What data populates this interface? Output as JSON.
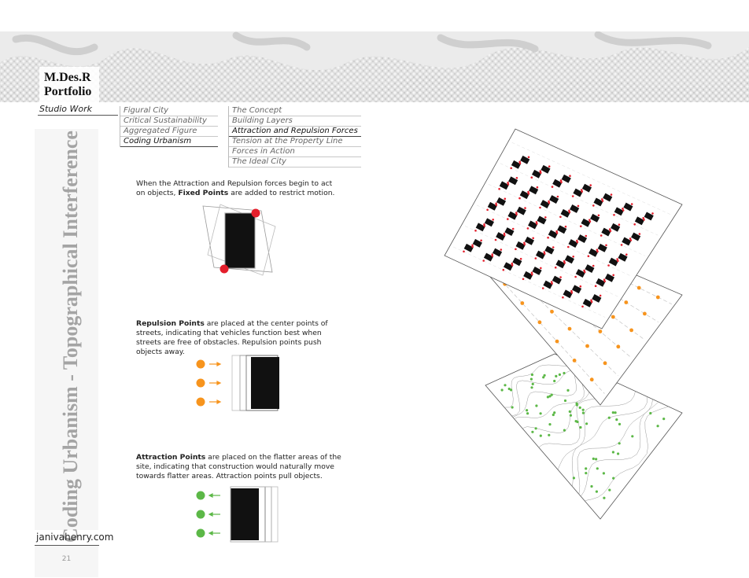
{
  "header": {
    "title_line1": "M.Des.R",
    "title_line2": "Portfolio",
    "section": "Studio Work"
  },
  "nav_projects": {
    "items": [
      {
        "label": "Figural City",
        "active": false
      },
      {
        "label": "Critical Sustainability",
        "active": false
      },
      {
        "label": "Aggregated Figure",
        "active": false
      },
      {
        "label": "Coding Urbanism",
        "active": true
      }
    ]
  },
  "nav_chapters": {
    "items": [
      {
        "label": "The Concept",
        "active": false
      },
      {
        "label": "Building Layers",
        "active": false
      },
      {
        "label": "Attraction and Repulsion Forces",
        "active": true
      },
      {
        "label": "Tension at the Property Line",
        "active": false
      },
      {
        "label": "Forces in Action",
        "active": false
      },
      {
        "label": "The Ideal City",
        "active": false
      }
    ]
  },
  "sidebar": {
    "vertical_title": "Coding Urbanism - Topographical Interference",
    "website": "janivahenry.com",
    "page_number": "21"
  },
  "content": {
    "fixed": {
      "lead": "When the Attraction and Repulsion forces begin to act on objects, ",
      "bold": "Fixed Points",
      "tail": " are added to restrict motion."
    },
    "repulsion": {
      "bold": "Repulsion Points",
      "tail": " are placed at the center points of streets, indicating that vehicles function best when streets are free of obstacles. Repulsion points push objects away."
    },
    "attraction": {
      "bold": "Attraction Points",
      "tail": " are placed on the flatter areas of the site, indicating that construction would naturally move towards flatter areas. Attraction points pull objects."
    }
  },
  "colors": {
    "fixed_point": "#e41e2b",
    "repulsion_point": "#f7941d",
    "attraction_point": "#5cb847",
    "sidebar_title": "#a4a4a4"
  }
}
